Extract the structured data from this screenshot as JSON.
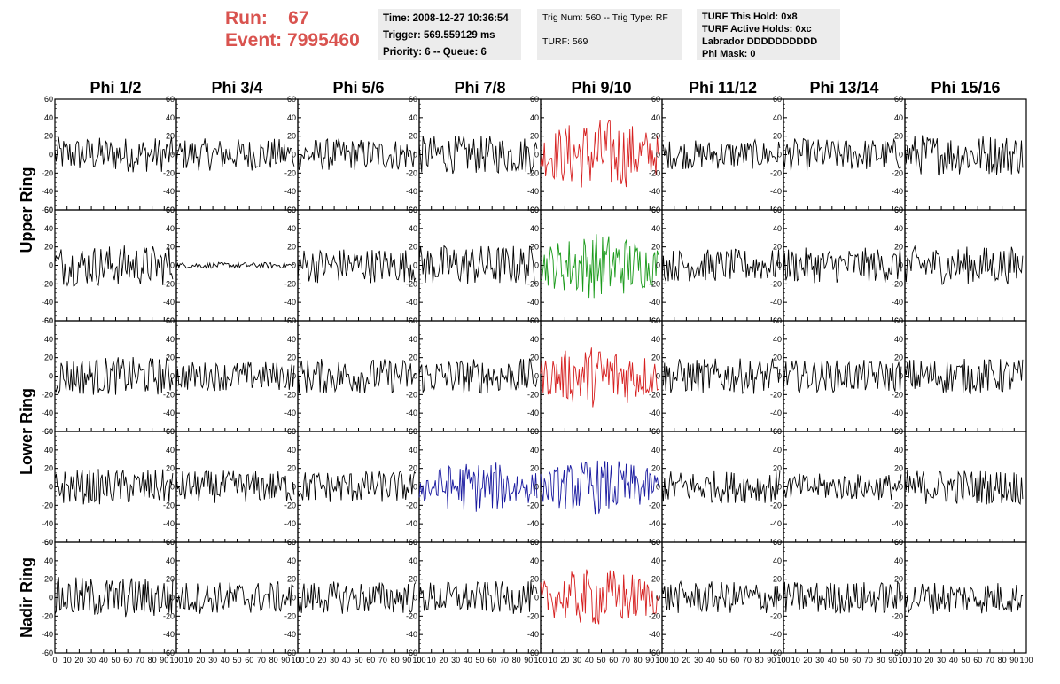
{
  "header": {
    "run_label": "Run:",
    "run_value": "67",
    "event_label": "Event:",
    "event_value": "7995460",
    "time": "Time: 2008-12-27 10:36:54",
    "trigger": "Trigger: 569.559129 ms",
    "priority": "Priority: 6 -- Queue: 6",
    "trig_num": "Trig Num: 560 -- Trig Type: RF",
    "turf": "TURF: 569",
    "turf_this_hold": "TURF This Hold: 0x8",
    "turf_active_holds": "TURF Active Holds: 0xc",
    "labrador": "Labrador DDDDDDDDDD",
    "phi_mask": "Phi Mask: 0"
  },
  "colors": {
    "header_red": "#d9534f",
    "trace_black": "#000000",
    "trace_red": "#d62020",
    "trace_green": "#1a9a1a",
    "trace_blue": "#1a1aa0",
    "info_bg": "#ececec"
  },
  "chart_data": {
    "type": "line",
    "columns": [
      "Phi 1/2",
      "Phi 3/4",
      "Phi 5/6",
      "Phi 7/8",
      "Phi 9/10",
      "Phi 11/12",
      "Phi 13/14",
      "Phi 15/16"
    ],
    "rings": [
      "Upper Ring",
      "Lower Ring",
      "Nadir Ring"
    ],
    "rows": 5,
    "ring_row_spans": [
      [
        0,
        1
      ],
      [
        2,
        3
      ],
      [
        4,
        4
      ]
    ],
    "xlim": [
      0,
      100
    ],
    "ylim": [
      -60,
      60
    ],
    "x_ticks": [
      0,
      10,
      20,
      30,
      40,
      50,
      60,
      70,
      80,
      90,
      100
    ],
    "y_ticks": [
      -60,
      -40,
      -20,
      0,
      20,
      40,
      60
    ],
    "samples_per_trace": 95,
    "panels": [
      [
        {
          "amp": 12,
          "color": "black"
        },
        {
          "amp": 11,
          "color": "black"
        },
        {
          "amp": 11,
          "color": "black"
        },
        {
          "amp": 13,
          "color": "black"
        },
        {
          "amp": 20,
          "color": "red"
        },
        {
          "amp": 10,
          "color": "black"
        },
        {
          "amp": 11,
          "color": "black"
        },
        {
          "amp": 14,
          "color": "black"
        }
      ],
      [
        {
          "amp": 14,
          "color": "black"
        },
        {
          "amp": 2,
          "color": "black"
        },
        {
          "amp": 12,
          "color": "black"
        },
        {
          "amp": 14,
          "color": "black"
        },
        {
          "amp": 18,
          "color": "green"
        },
        {
          "amp": 11,
          "color": "black"
        },
        {
          "amp": 12,
          "color": "black"
        },
        {
          "amp": 13,
          "color": "black"
        }
      ],
      [
        {
          "amp": 13,
          "color": "black"
        },
        {
          "amp": 10,
          "color": "black"
        },
        {
          "amp": 12,
          "color": "black"
        },
        {
          "amp": 12,
          "color": "black"
        },
        {
          "amp": 17,
          "color": "red"
        },
        {
          "amp": 12,
          "color": "black"
        },
        {
          "amp": 11,
          "color": "black"
        },
        {
          "amp": 12,
          "color": "black"
        }
      ],
      [
        {
          "amp": 12,
          "color": "black"
        },
        {
          "amp": 11,
          "color": "black"
        },
        {
          "amp": 11,
          "color": "black"
        },
        {
          "amp": 14,
          "color": "blue"
        },
        {
          "amp": 15,
          "color": "blue"
        },
        {
          "amp": 11,
          "color": "black"
        },
        {
          "amp": 9,
          "color": "black"
        },
        {
          "amp": 12,
          "color": "black"
        }
      ],
      [
        {
          "amp": 14,
          "color": "black"
        },
        {
          "amp": 11,
          "color": "black"
        },
        {
          "amp": 11,
          "color": "black"
        },
        {
          "amp": 11,
          "color": "black"
        },
        {
          "amp": 16,
          "color": "red"
        },
        {
          "amp": 11,
          "color": "black"
        },
        {
          "amp": 11,
          "color": "black"
        },
        {
          "amp": 11,
          "color": "black"
        }
      ]
    ]
  }
}
